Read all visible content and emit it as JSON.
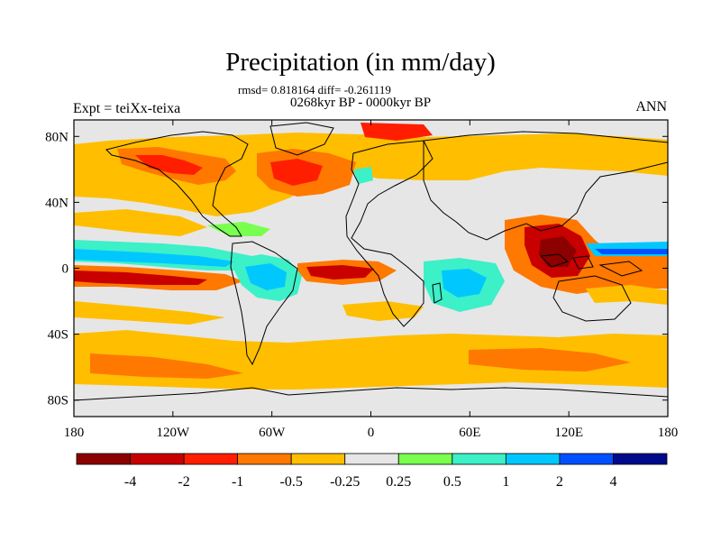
{
  "header": {
    "title": "Precipitation (in mm/day)",
    "stats": "rmsd= 0.818164 diff= -0.261119",
    "period": "0268kyr BP - 0000kyr BP",
    "experiment": "Expt = teiXx-teixa",
    "season": "ANN"
  },
  "map": {
    "projection": "cylindrical equidistant",
    "lon_range": [
      -180,
      180
    ],
    "lat_range": [
      -90,
      90
    ],
    "lat_ticks": [
      80,
      40,
      0,
      -40,
      -80
    ],
    "lat_tick_labels": [
      "80N",
      "40N",
      "0",
      "40S",
      "80S"
    ],
    "lon_ticks": [
      -180,
      -120,
      -60,
      0,
      60,
      120,
      180
    ],
    "lon_tick_labels": [
      "180",
      "120W",
      "60W",
      "0",
      "60E",
      "120E",
      "180"
    ],
    "background_fill": "#e6e6e6",
    "coastline_color": "#000000"
  },
  "colorbar": {
    "colors": [
      "#8c0000",
      "#c80000",
      "#ff1e00",
      "#ff7800",
      "#ffbe00",
      "#e6e6e6",
      "#78ff50",
      "#3cf0c8",
      "#00c8ff",
      "#0050ff",
      "#000a8c"
    ],
    "labels": [
      "-4",
      "-2",
      "-1",
      "-0.5",
      "-0.25",
      "0.25",
      "0.5",
      "1",
      "2",
      "4"
    ]
  }
}
